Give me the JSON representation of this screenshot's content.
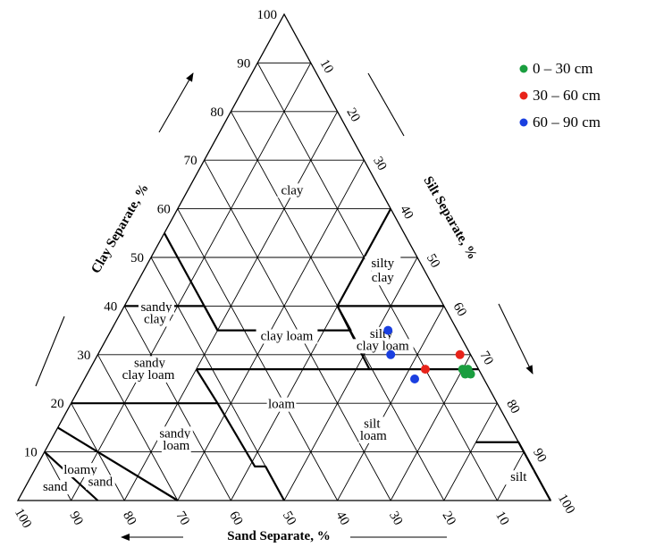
{
  "chart_data": {
    "type": "ternary",
    "axes": {
      "clay": {
        "label": "Clay Separate, %",
        "ticks": [
          "10",
          "20",
          "30",
          "40",
          "50",
          "60",
          "70",
          "80",
          "90",
          "100"
        ]
      },
      "silt": {
        "label": "Silt Separate, %",
        "ticks": [
          "10",
          "20",
          "30",
          "40",
          "50",
          "60",
          "70",
          "80",
          "90",
          "100"
        ]
      },
      "sand": {
        "label": "Sand Separate, %",
        "ticks": [
          "100",
          "90",
          "80",
          "70",
          "60",
          "50",
          "40",
          "30",
          "20",
          "10"
        ]
      }
    },
    "classes": [
      {
        "name": "clay",
        "lines": [
          "clay"
        ]
      },
      {
        "name": "silty clay",
        "lines": [
          "silty",
          "clay"
        ]
      },
      {
        "name": "sandy clay",
        "lines": [
          "sandy",
          "clay"
        ]
      },
      {
        "name": "silty clay loam",
        "lines": [
          "silty",
          "clay loam"
        ]
      },
      {
        "name": "clay loam",
        "lines": [
          "clay loam"
        ]
      },
      {
        "name": "sandy clay loam",
        "lines": [
          "sandy",
          "clay loam"
        ]
      },
      {
        "name": "loam",
        "lines": [
          "loam"
        ]
      },
      {
        "name": "silt loam",
        "lines": [
          "silt",
          "loam"
        ]
      },
      {
        "name": "sandy loam",
        "lines": [
          "sandy",
          "loam"
        ]
      },
      {
        "name": "loamy sand",
        "lines": [
          "loamy",
          "sand"
        ]
      },
      {
        "name": "sand",
        "lines": [
          "sand"
        ]
      },
      {
        "name": "silt",
        "lines": [
          "silt"
        ]
      }
    ],
    "series": [
      {
        "name": "0 – 30 cm",
        "color": "#1a9e3f",
        "points": [
          {
            "clay": 27,
            "silt": 71
          },
          {
            "clay": 26,
            "silt": 72
          },
          {
            "clay": 27,
            "silt": 70
          },
          {
            "clay": 26,
            "silt": 71
          }
        ]
      },
      {
        "name": "30 – 60 cm",
        "color": "#e8231a",
        "points": [
          {
            "clay": 30,
            "silt": 68
          },
          {
            "clay": 27,
            "silt": 63
          }
        ]
      },
      {
        "name": "60 – 90 cm",
        "color": "#1a3fe0",
        "points": [
          {
            "clay": 35,
            "silt": 52
          },
          {
            "clay": 30,
            "silt": 55
          },
          {
            "clay": 25,
            "silt": 62
          }
        ]
      }
    ],
    "legend_position": "top-right"
  }
}
